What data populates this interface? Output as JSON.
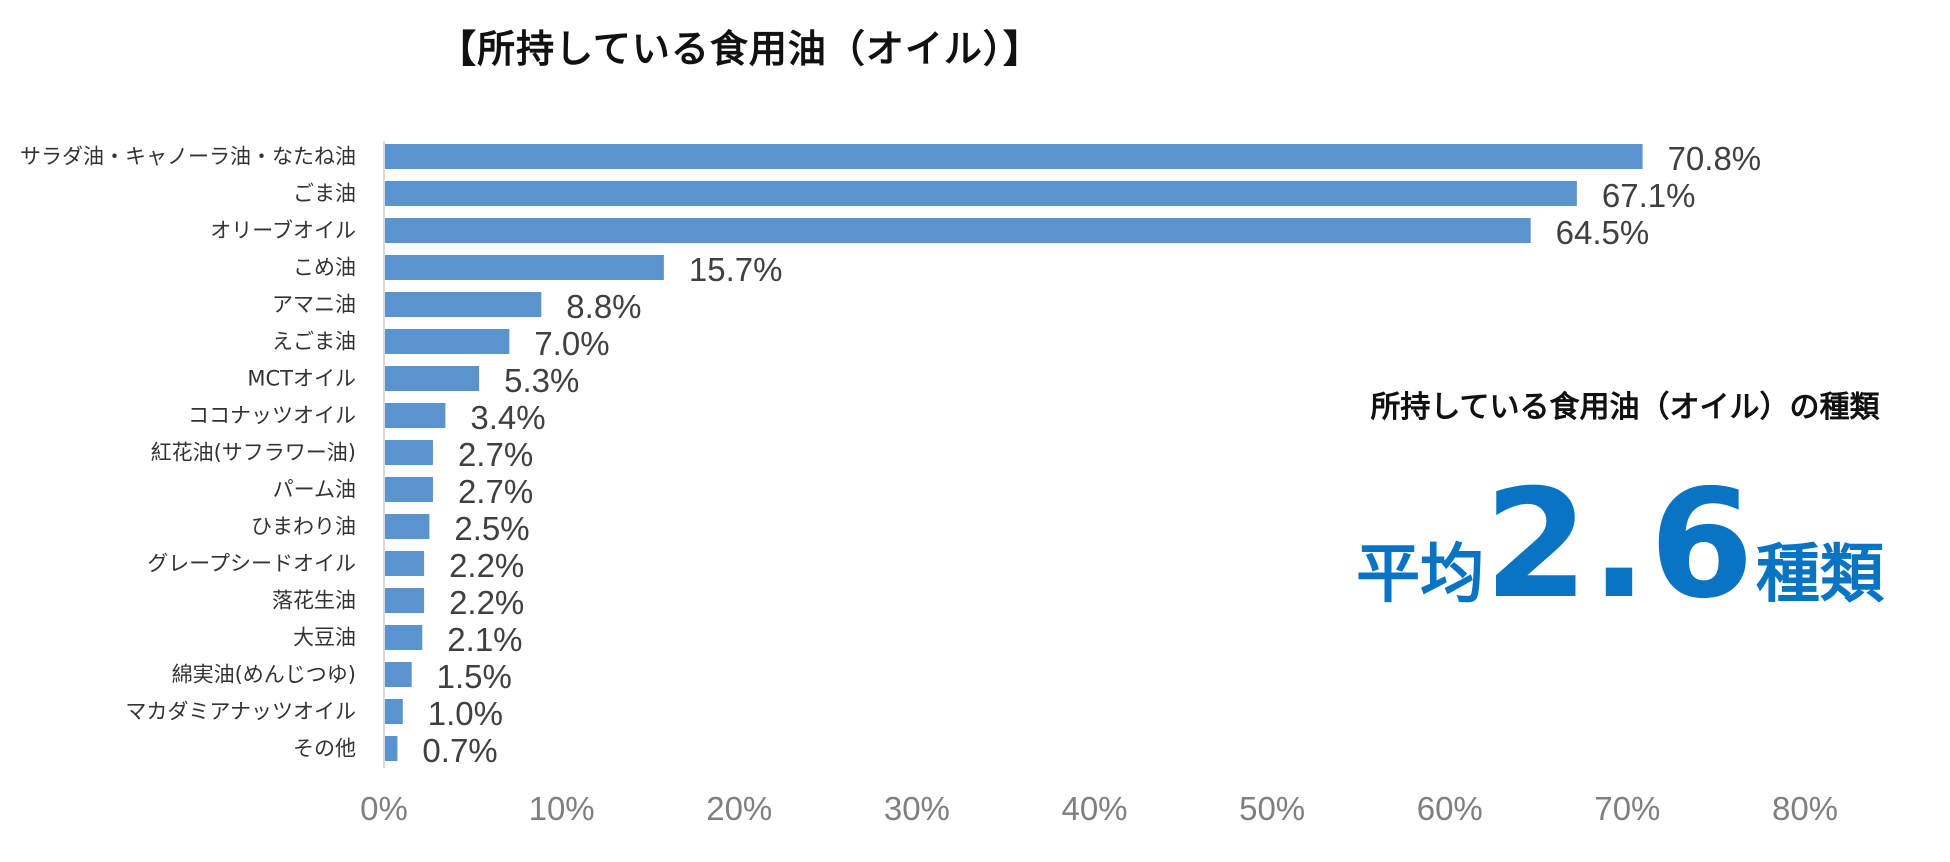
{
  "chart_data": {
    "type": "bar",
    "orientation": "horizontal",
    "title": "【所持している食用油（オイル）】",
    "categories": [
      "サラダ油・キャノーラ油・なたね油",
      "ごま油",
      "オリーブオイル",
      "こめ油",
      "アマニ油",
      "えごま油",
      "MCTオイル",
      "ココナッツオイル",
      "紅花油(サフラワー油)",
      "パーム油",
      "ひまわり油",
      "グレープシードオイル",
      "落花生油",
      "大豆油",
      "綿実油(めんじつゆ)",
      "マカダミアナッツオイル",
      "その他"
    ],
    "values": [
      70.8,
      67.1,
      64.5,
      15.7,
      8.8,
      7.0,
      5.3,
      3.4,
      2.7,
      2.7,
      2.5,
      2.2,
      2.2,
      2.1,
      1.5,
      1.0,
      0.7
    ],
    "value_labels": [
      "70.8%",
      "67.1%",
      "64.5%",
      "15.7%",
      "8.8%",
      "7.0%",
      "5.3%",
      "3.4%",
      "2.7%",
      "2.7%",
      "2.5%",
      "2.2%",
      "2.2%",
      "2.1%",
      "1.5%",
      "1.0%",
      "0.7%"
    ],
    "xlim": [
      0,
      80
    ],
    "xticks": [
      "0%",
      "10%",
      "20%",
      "30%",
      "40%",
      "50%",
      "60%",
      "70%",
      "80%"
    ],
    "xlabel": "",
    "ylabel": "",
    "grid": false,
    "bar_color": "#5b93ce"
  },
  "summary": {
    "heading": "所持している食用油（オイル）の種類",
    "prefix": "平均",
    "number": "2.6",
    "suffix": "種類",
    "color": "#0a74c4"
  }
}
